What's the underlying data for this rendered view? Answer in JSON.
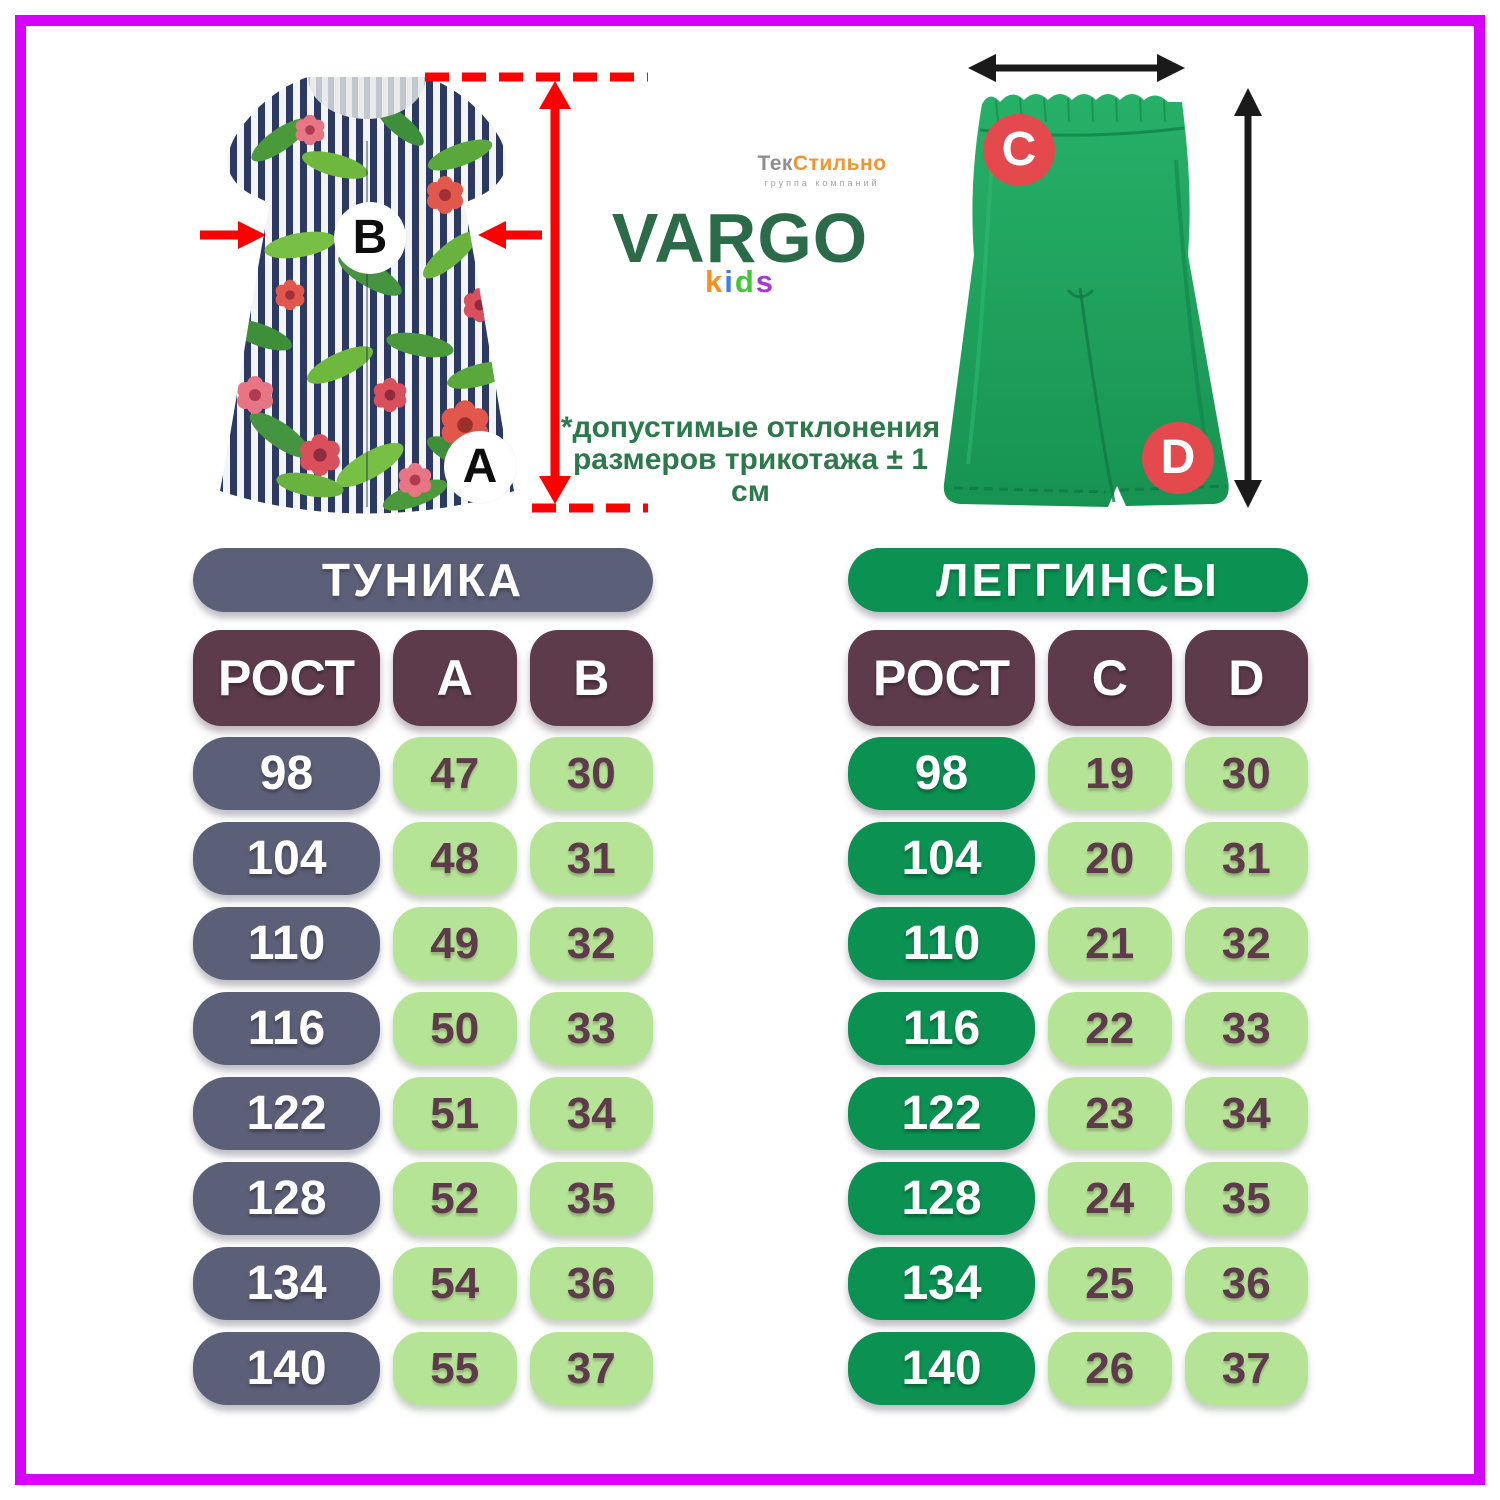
{
  "page": {
    "frame_color": "#d602fa",
    "background": "#ffffff"
  },
  "header": {
    "textilno_logo": {
      "part1": "Тек",
      "part2": "Стильно",
      "part1_color": "#8f8f8f",
      "part2_color": "#f09531",
      "subtitle": "группа компаний"
    },
    "vargo_logo": {
      "name": "VARGO",
      "name_color": "#2c6b49",
      "sub_letters": [
        {
          "char": "k",
          "color": "#ff8d1e"
        },
        {
          "char": "i",
          "color": "#3e7df7"
        },
        {
          "char": "d",
          "color": "#3ecb32"
        },
        {
          "char": "s",
          "color": "#a637d2"
        }
      ]
    },
    "note_line1": "*допустимые отклонения",
    "note_line2": "размеров трикотажа ± 1 см",
    "note_color": "#2c7a4b"
  },
  "figures": {
    "tunic": {
      "width_label": "B",
      "length_label": "A",
      "measure_color": "#fa0200"
    },
    "leggings": {
      "waist_label": "C",
      "length_label": "D",
      "measure_color": "#1a1a1a",
      "label_circle_color": "#e4494e"
    }
  },
  "tables": [
    {
      "title": "ТУНИКА",
      "accent_color": "#5c5f78",
      "columns": [
        "РОСТ",
        "A",
        "B"
      ],
      "rows": [
        {
          "height": "98",
          "values": [
            "47",
            "30"
          ]
        },
        {
          "height": "104",
          "values": [
            "48",
            "31"
          ]
        },
        {
          "height": "110",
          "values": [
            "49",
            "32"
          ]
        },
        {
          "height": "116",
          "values": [
            "50",
            "33"
          ]
        },
        {
          "height": "122",
          "values": [
            "51",
            "34"
          ]
        },
        {
          "height": "128",
          "values": [
            "52",
            "35"
          ]
        },
        {
          "height": "134",
          "values": [
            "54",
            "36"
          ]
        },
        {
          "height": "140",
          "values": [
            "55",
            "37"
          ]
        }
      ]
    },
    {
      "title": "ЛЕГГИНСЫ",
      "accent_color": "#0b9152",
      "columns": [
        "РОСТ",
        "C",
        "D"
      ],
      "rows": [
        {
          "height": "98",
          "values": [
            "19",
            "30"
          ]
        },
        {
          "height": "104",
          "values": [
            "20",
            "31"
          ]
        },
        {
          "height": "110",
          "values": [
            "21",
            "32"
          ]
        },
        {
          "height": "116",
          "values": [
            "22",
            "33"
          ]
        },
        {
          "height": "122",
          "values": [
            "23",
            "34"
          ]
        },
        {
          "height": "128",
          "values": [
            "24",
            "35"
          ]
        },
        {
          "height": "134",
          "values": [
            "25",
            "36"
          ]
        },
        {
          "height": "140",
          "values": [
            "26",
            "37"
          ]
        }
      ]
    }
  ],
  "colors": {
    "header_pill": "#5d3b4b",
    "value_pill": "#b6e497",
    "value_text": "#5d3b4b",
    "tunic_pill": "#5c5f78",
    "leggings_pill": "#0b9152"
  },
  "chart_data": [
    {
      "type": "table",
      "title": "ТУНИКА",
      "columns": [
        "РОСТ",
        "A",
        "B"
      ],
      "rows": [
        [
          98,
          47,
          30
        ],
        [
          104,
          48,
          31
        ],
        [
          110,
          49,
          32
        ],
        [
          116,
          50,
          33
        ],
        [
          122,
          51,
          34
        ],
        [
          128,
          52,
          35
        ],
        [
          134,
          54,
          36
        ],
        [
          140,
          55,
          37
        ]
      ]
    },
    {
      "type": "table",
      "title": "ЛЕГГИНСЫ",
      "columns": [
        "РОСТ",
        "C",
        "D"
      ],
      "rows": [
        [
          98,
          19,
          30
        ],
        [
          104,
          20,
          31
        ],
        [
          110,
          21,
          32
        ],
        [
          116,
          22,
          33
        ],
        [
          122,
          23,
          34
        ],
        [
          128,
          24,
          35
        ],
        [
          134,
          25,
          36
        ],
        [
          140,
          26,
          37
        ]
      ]
    }
  ]
}
